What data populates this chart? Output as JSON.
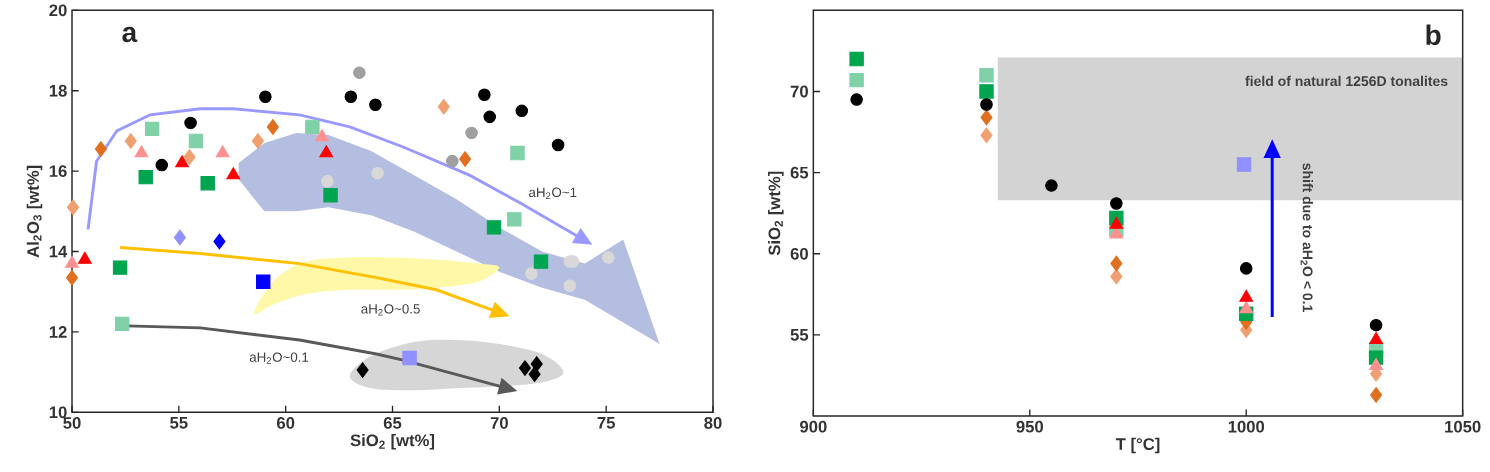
{
  "chart_data": [
    {
      "type": "scatter",
      "title": "a",
      "xlabel": "SiO$_{2}$ [wt%]",
      "ylabel": "Al$_{2}$O$_{3}$ [wt%]",
      "xlim": [
        50,
        80
      ],
      "ylim": [
        10,
        20
      ],
      "xticks": [
        50,
        55,
        60,
        65,
        70,
        75,
        80
      ],
      "yticks": [
        10,
        12,
        14,
        16,
        18,
        20
      ],
      "series": [
        {
          "marker": "circle",
          "color": "#d8d8d8",
          "x": [
            64.3,
            61.95,
            71.5,
            73.3,
            73.45,
            75.1,
            73.3
          ],
          "values": [
            15.95,
            15.75,
            13.45,
            13.75,
            13.75,
            13.85,
            13.15
          ]
        },
        {
          "marker": "circle",
          "color": "#000000",
          "x": [
            59.05,
            55.55,
            69.3,
            69.55,
            71.05,
            72.75,
            64.2,
            63.05,
            54.2
          ],
          "values": [
            17.85,
            17.2,
            17.9,
            17.35,
            17.5,
            16.65,
            17.65,
            17.85,
            16.15
          ]
        },
        {
          "marker": "circle",
          "color": "#a0a0a0",
          "x": [
            63.45,
            68.7,
            67.8
          ],
          "values": [
            18.45,
            16.95,
            16.25
          ]
        },
        {
          "marker": "diamond",
          "color": "#f0a070",
          "x": [
            50.05,
            52.75,
            55.5,
            58.7,
            67.4
          ],
          "values": [
            15.1,
            16.75,
            16.35,
            16.75,
            17.6
          ]
        },
        {
          "marker": "diamond",
          "color": "#e07020",
          "x": [
            51.35,
            59.4,
            68.4,
            50.0
          ],
          "values": [
            16.55,
            17.1,
            16.3,
            13.35
          ]
        },
        {
          "marker": "square",
          "color": "#80d0a8",
          "x": [
            53.75,
            55.8,
            61.25,
            52.35,
            70.85,
            70.7
          ],
          "values": [
            17.05,
            16.75,
            17.1,
            12.2,
            16.45,
            14.8
          ]
        },
        {
          "marker": "square",
          "color": "#00a550",
          "x": [
            53.45,
            56.35,
            62.1,
            52.25,
            69.75,
            71.95
          ],
          "values": [
            15.85,
            15.7,
            15.4,
            13.6,
            14.6,
            13.75
          ]
        },
        {
          "marker": "triangle",
          "color": "#ff9090",
          "x": [
            50.0,
            53.25,
            57.05,
            61.7
          ],
          "values": [
            13.7,
            16.45,
            16.45,
            16.85
          ]
        },
        {
          "marker": "triangle",
          "color": "#ff0000",
          "x": [
            50.6,
            55.15,
            57.55,
            61.9
          ],
          "values": [
            13.8,
            16.2,
            15.9,
            16.45
          ]
        },
        {
          "marker": "diamond",
          "color": "#9090ff",
          "x": [
            55.05
          ],
          "values": [
            14.35
          ]
        },
        {
          "marker": "diamond",
          "color": "#0000ff",
          "x": [
            56.9
          ],
          "values": [
            14.25
          ]
        },
        {
          "marker": "square",
          "color": "#0000ff",
          "x": [
            58.95
          ],
          "values": [
            13.25
          ]
        },
        {
          "marker": "square",
          "color": "#9090ff",
          "x": [
            65.8
          ],
          "values": [
            11.35
          ]
        },
        {
          "marker": "diamond",
          "color": "#000000",
          "x": [
            63.6,
            71.2,
            71.75,
            71.65
          ],
          "values": [
            11.05,
            11.1,
            11.2,
            10.95
          ]
        }
      ],
      "annotations": [
        "aH$_{2}$O~1",
        "aH$_{2}$O~0.5",
        "aH$_{2}$O~0.1"
      ]
    },
    {
      "type": "scatter",
      "title": "b",
      "xlabel": "T [°C]",
      "ylabel": "SiO$_{2}$ [wt%]",
      "xlim": [
        900,
        1050
      ],
      "ylim": [
        50,
        75
      ],
      "xticks": [
        900,
        950,
        1000,
        1050
      ],
      "yticks": [
        55,
        60,
        65,
        70
      ],
      "series": [
        {
          "marker": "diamond",
          "color": "#f0a070",
          "x": [
            940,
            970,
            1000,
            1030
          ],
          "values": [
            67.3,
            58.6,
            55.3,
            52.6
          ]
        },
        {
          "marker": "diamond",
          "color": "#e07020",
          "x": [
            940,
            970,
            1000,
            1030
          ],
          "values": [
            68.4,
            59.4,
            55.8,
            51.3
          ]
        },
        {
          "marker": "square",
          "color": "#80d0a8",
          "x": [
            910,
            940,
            970,
            1030
          ],
          "values": [
            70.7,
            71.0,
            61.5,
            54.1
          ]
        },
        {
          "marker": "square",
          "color": "#00a550",
          "x": [
            910,
            940,
            970,
            1000,
            1030
          ],
          "values": [
            72.0,
            70.0,
            62.2,
            56.3,
            53.6
          ]
        },
        {
          "marker": "triangle",
          "color": "#ff9090",
          "x": [
            970,
            1000,
            1030
          ],
          "values": [
            61.2,
            56.6,
            53.1
          ]
        },
        {
          "marker": "triangle",
          "color": "#ff0000",
          "x": [
            970,
            1000,
            1030
          ],
          "values": [
            61.8,
            57.3,
            54.7
          ]
        },
        {
          "marker": "circle",
          "color": "#000000",
          "x": [
            910,
            940,
            955,
            970,
            1000,
            1030
          ],
          "values": [
            69.5,
            69.2,
            64.2,
            63.1,
            59.1,
            55.6
          ]
        },
        {
          "marker": "square",
          "color": "#9090ff",
          "x": [
            999.5
          ],
          "values": [
            65.5
          ]
        }
      ],
      "annotations": [
        "field of natural 1256D tonalites",
        "shift due to aH$_{2}$O < 0.1"
      ]
    }
  ]
}
